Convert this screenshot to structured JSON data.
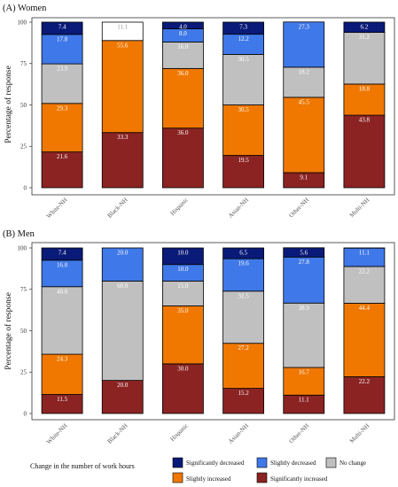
{
  "chart_data": [
    {
      "type": "bar",
      "stacked": true,
      "title": "(A) Women",
      "ylabel": "Percentage of response",
      "xlabel": "",
      "ylim": [
        0,
        100
      ],
      "yticks": [
        "0",
        "25",
        "50",
        "75",
        "100"
      ],
      "categories": [
        "White-NH",
        "Black-NH",
        "Hispanic",
        "Asian-NH",
        "Other-NH",
        "Multi-NH"
      ],
      "series": [
        {
          "name": "Significantly increased",
          "color": "#8b2323",
          "values": [
            21.6,
            33.3,
            36.0,
            19.5,
            9.1,
            43.8
          ],
          "labels": [
            "21.6",
            "33.3",
            "36.0",
            "19.5",
            "9.1",
            "43.8"
          ]
        },
        {
          "name": "Slightly increased",
          "color": "#f07800",
          "values": [
            29.3,
            55.6,
            36.0,
            30.5,
            45.5,
            18.8
          ],
          "labels": [
            "29.3",
            "55.6",
            "36.0",
            "30.5",
            "45.5",
            "18.8"
          ]
        },
        {
          "name": "No change",
          "color": "#c0c0c0",
          "values": [
            23.9,
            0,
            16.0,
            30.5,
            18.2,
            31.2
          ],
          "labels": [
            "23.9",
            "",
            "16.0",
            "30.5",
            "18.2",
            "31.2"
          ]
        },
        {
          "name": "Slightly decreased",
          "color": "#3f78e8",
          "values": [
            17.8,
            0,
            8.0,
            12.2,
            27.3,
            0
          ],
          "labels": [
            "17.8",
            "",
            "8.0",
            "12.2",
            "27.3",
            ""
          ]
        },
        {
          "name": "Significantly decreased",
          "color": "#0a1a78",
          "values": [
            7.4,
            0,
            4.0,
            7.3,
            0,
            6.2
          ],
          "labels": [
            "7.4",
            "",
            "4.0",
            "7.3",
            "",
            "6.2"
          ]
        }
      ],
      "extra_labels": [
        {
          "category": "Black-NH",
          "text": "11.1"
        }
      ],
      "grid": false
    },
    {
      "type": "bar",
      "stacked": true,
      "title": "(B) Men",
      "ylabel": "Percentage of response",
      "xlabel": "",
      "ylim": [
        0,
        100
      ],
      "yticks": [
        "0",
        "25",
        "50",
        "75",
        "100"
      ],
      "categories": [
        "White-NH",
        "Black-NH",
        "Hispanic",
        "Asian-NH",
        "Other-NH",
        "Multi-NH"
      ],
      "series": [
        {
          "name": "Significantly increased",
          "color": "#8b2323",
          "values": [
            11.5,
            20.0,
            30.0,
            15.2,
            11.1,
            22.2
          ],
          "labels": [
            "11.5",
            "20.0",
            "30.0",
            "15.2",
            "11.1",
            "22.2"
          ]
        },
        {
          "name": "Slightly increased",
          "color": "#f07800",
          "values": [
            24.3,
            0,
            35.0,
            27.2,
            16.7,
            44.4
          ],
          "labels": [
            "24.3",
            "",
            "35.0",
            "27.2",
            "16.7",
            "44.4"
          ]
        },
        {
          "name": "No change",
          "color": "#c0c0c0",
          "values": [
            40.8,
            60.0,
            15.0,
            31.5,
            38.9,
            22.2
          ],
          "labels": [
            "40.8",
            "60.0",
            "15.0",
            "31.5",
            "38.9",
            "22.2"
          ]
        },
        {
          "name": "Slightly decreased",
          "color": "#3f78e8",
          "values": [
            16.0,
            20.0,
            10.0,
            19.6,
            27.8,
            11.1
          ],
          "labels": [
            "16.0",
            "20.0",
            "10.0",
            "19.6",
            "27.8",
            "11.1"
          ]
        },
        {
          "name": "Significantly decreased",
          "color": "#0a1a78",
          "values": [
            7.4,
            0,
            10.0,
            6.5,
            5.6,
            0
          ],
          "labels": [
            "7.4",
            "",
            "10.0",
            "6.5",
            "5.6",
            ""
          ]
        }
      ],
      "grid": false
    }
  ],
  "legend": {
    "title": "Change in the number of work hours",
    "placement": "bottom",
    "items": [
      {
        "label": "Significantly decreased",
        "color": "#0a1a78"
      },
      {
        "label": "Slightly decreased",
        "color": "#3f78e8"
      },
      {
        "label": "No change",
        "color": "#c0c0c0"
      },
      {
        "label": "Slightly increased",
        "color": "#f07800"
      },
      {
        "label": "Significantly increased",
        "color": "#8b2323"
      }
    ]
  }
}
